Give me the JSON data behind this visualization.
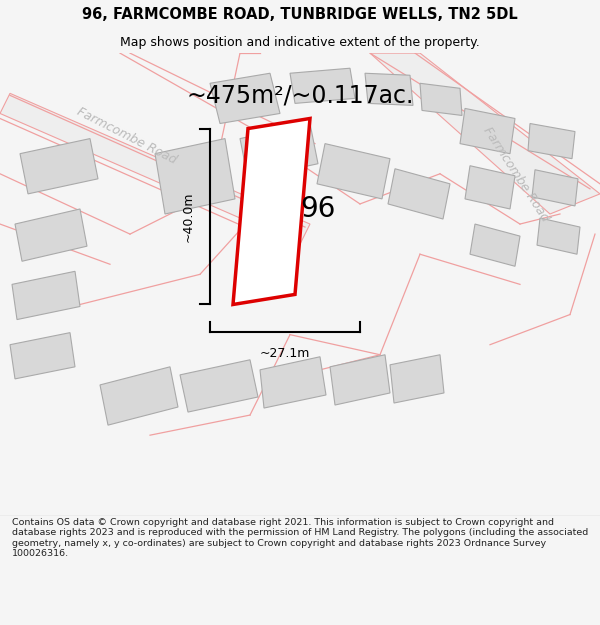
{
  "title": "96, FARMCOMBE ROAD, TUNBRIDGE WELLS, TN2 5DL",
  "subtitle": "Map shows position and indicative extent of the property.",
  "area_label": "~475m²/~0.117ac.",
  "number_label": "96",
  "width_label": "~27.1m",
  "height_label": "~40.0m",
  "road_label_top": "Farmcombe Road",
  "road_label_right": "Farmcombe Road",
  "footer_text": "Contains OS data © Crown copyright and database right 2021. This information is subject to Crown copyright and database rights 2023 and is reproduced with the permission of HM Land Registry. The polygons (including the associated geometry, namely x, y co-ordinates) are subject to Crown copyright and database rights 2023 Ordnance Survey 100026316.",
  "bg_color": "#f5f5f5",
  "map_bg": "#ffffff",
  "road_fill": "#eeeeee",
  "building_fill": "#d8d8d8",
  "road_line_color": "#f0a0a0",
  "building_edge_color": "#aaaaaa",
  "highlight_color": "#dd0000",
  "highlight_fill": "#ffffff",
  "text_color": "#333333",
  "road_text_color": "#bbbbbb",
  "footer_color": "#222222",
  "title_fontsize": 10.5,
  "subtitle_fontsize": 9,
  "area_fontsize": 17,
  "number_fontsize": 20,
  "dim_fontsize": 9,
  "road_fontsize": 9,
  "footer_fontsize": 6.8
}
